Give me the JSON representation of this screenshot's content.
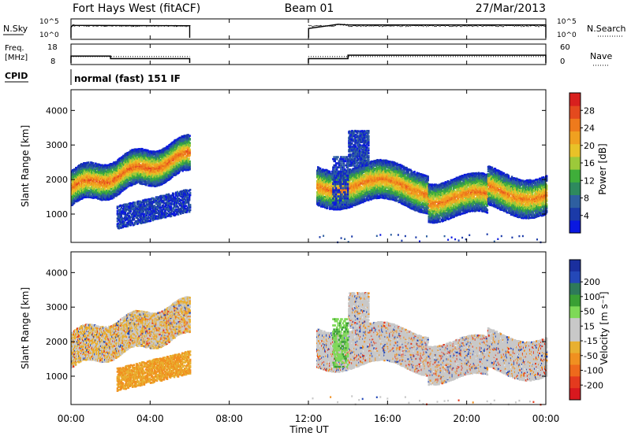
{
  "header": {
    "radar": "Fort Hays West (fitACF)",
    "beam": "Beam 01",
    "date": "27/Mar/2013"
  },
  "small_panels": {
    "nsky_label": "N.Sky",
    "nsearch_label": "N.Search",
    "freq_label_line1": "Freq.",
    "freq_label_line2": "[MHz]",
    "nave_label": "Nave",
    "cpid_label": "CPID",
    "cpid_value": "normal (fast) 151 IF",
    "log_top_tick": "10^5",
    "log_bottom_tick": "10^0",
    "freq_ticks": [
      "18",
      "8"
    ],
    "nave_ticks": [
      "60",
      "0"
    ]
  },
  "chart_data": [
    {
      "type": "line",
      "title": "N.Sky / N.Search",
      "yscale": "log",
      "ylim": [
        1,
        100000
      ],
      "x_hours": [
        0,
        0.1,
        0.2,
        6.0,
        6.01,
        12.0,
        12.01,
        13.0,
        13.5,
        14.0,
        24.0
      ],
      "series": [
        {
          "name": "N.Sky",
          "values": [
            1000,
            5000,
            4000,
            3000,
            null,
            null,
            500,
            3000,
            8000,
            5000,
            5000
          ]
        }
      ]
    },
    {
      "type": "line",
      "title": "Freq. / Nave",
      "xlim": [
        0,
        24
      ],
      "segments": [
        {
          "start": 0.0,
          "end": 2.0,
          "freq": 12.0,
          "nave": 22
        },
        {
          "start": 2.0,
          "end": 6.0,
          "freq": 10.5,
          "nave": 22
        },
        {
          "start": 12.0,
          "end": 14.0,
          "freq": 10.5,
          "nave": 22
        },
        {
          "start": 14.0,
          "end": 24.0,
          "freq": 12.5,
          "nave": 22
        }
      ],
      "freq_ylim": [
        8,
        18
      ],
      "nave_ylim": [
        0,
        60
      ]
    },
    {
      "type": "heatmap",
      "title": "Power",
      "xlabel": "Time UT",
      "ylabel": "Slant Range [km]",
      "xlim": [
        0,
        24
      ],
      "ylim": [
        180,
        4600
      ],
      "x_ticks": [
        "00:00",
        "04:00",
        "08:00",
        "12:00",
        "16:00",
        "20:00",
        "00:00"
      ],
      "y_ticks": [
        1000,
        2000,
        3000,
        4000
      ],
      "colorbar": {
        "label": "Power [dB]",
        "ticks": [
          4,
          8,
          12,
          16,
          20,
          24,
          28
        ],
        "range": [
          0,
          32
        ],
        "colors": [
          "#0a18e0",
          "#1b3aa8",
          "#2e5fa0",
          "#2e8a5e",
          "#3fae3a",
          "#9cc93a",
          "#e8c228",
          "#f0a020",
          "#ee7a1c",
          "#e44a1e",
          "#d8201e"
        ]
      },
      "features": [
        {
          "t0": 0.0,
          "t1": 6.0,
          "r_start": 1750,
          "r_end": 2700,
          "width": 500,
          "strength": 0.75
        },
        {
          "t0": 12.4,
          "t1": 24.0,
          "r_start": 1900,
          "r_end": 1600,
          "width": 550,
          "strength": 0.7
        },
        {
          "t0": 2.3,
          "t1": 6.0,
          "r_start": 900,
          "r_end": 1400,
          "width": 300,
          "strength": 0.25
        },
        {
          "t0": 14.0,
          "t1": 15.0,
          "r_start": 2900,
          "r_end": 2900,
          "width": 500,
          "strength": 0.35
        }
      ]
    },
    {
      "type": "heatmap",
      "title": "Velocity",
      "xlabel": "Time UT",
      "ylabel": "Slant Range [km]",
      "xlim": [
        0,
        24
      ],
      "ylim": [
        180,
        4600
      ],
      "x_ticks": [
        "00:00",
        "04:00",
        "08:00",
        "12:00",
        "16:00",
        "20:00",
        "00:00"
      ],
      "y_ticks": [
        1000,
        2000,
        3000,
        4000
      ],
      "colorbar": {
        "label": "Velocity [m s⁻¹]",
        "ticks": [
          "200",
          "100",
          "50",
          "15",
          "-15",
          "-50",
          "-100",
          "-200"
        ],
        "colors": [
          "#1a2f9e",
          "#2448b8",
          "#2e7a5a",
          "#3aa034",
          "#7ed957",
          "#c8c8c8",
          "#c8c8c8",
          "#e8b030",
          "#f09020",
          "#ee6a1c",
          "#e43a1e",
          "#d8181e"
        ]
      }
    }
  ]
}
